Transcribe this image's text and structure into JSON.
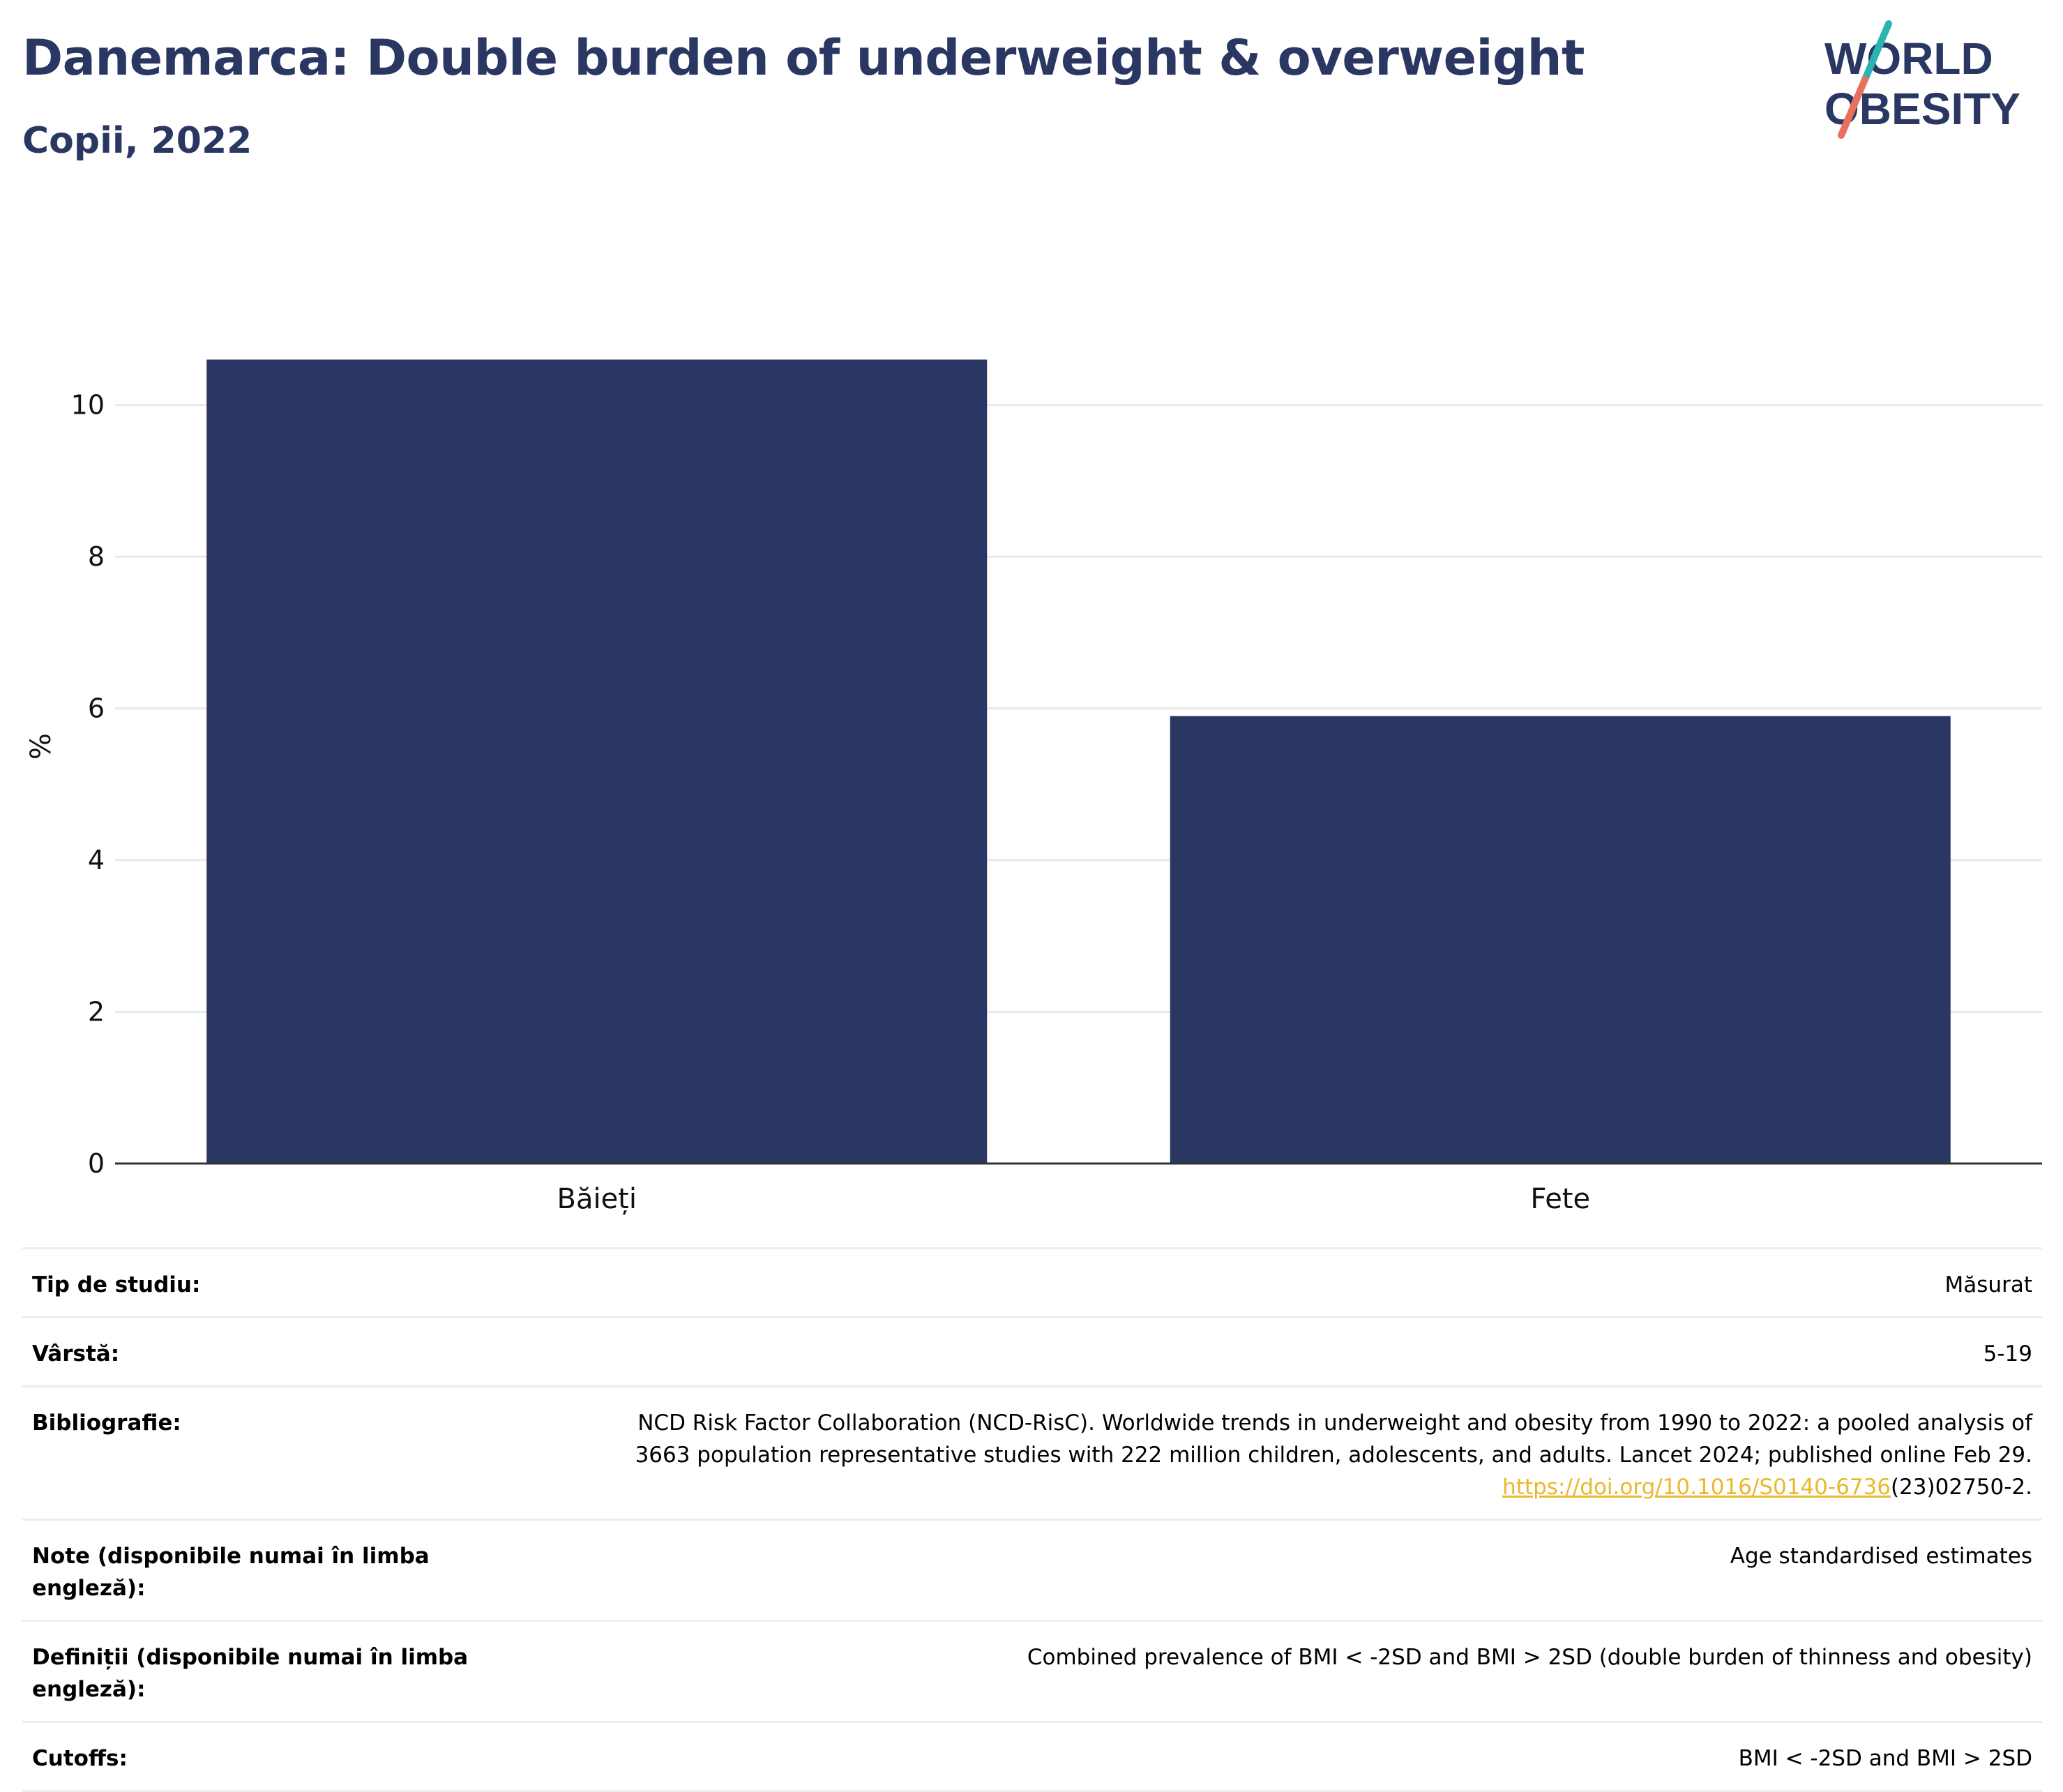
{
  "header": {
    "title": "Danemarca: Double burden of underweight & overweight",
    "subtitle": "Copii, 2022"
  },
  "logo": {
    "line1": "WORLD",
    "line2": "OBESITY",
    "colors": {
      "text": "#2b3763",
      "slash_top": "#2bb3b1",
      "slash_bottom": "#e8705e"
    }
  },
  "colors": {
    "bar": "#2b3763",
    "grid": "#e6e9ed",
    "axis": "#333333",
    "link": "#e8b92d"
  },
  "chart_data": {
    "type": "bar",
    "categories": [
      "Băieți",
      "Fete"
    ],
    "values": [
      10.6,
      5.9
    ],
    "ylabel": "%",
    "ylim": [
      0,
      11.0
    ],
    "yticks": [
      0,
      2,
      4,
      6,
      8,
      10
    ],
    "grid": true,
    "legend": "none"
  },
  "info": [
    {
      "label": "Tip de studiu:",
      "value": "Măsurat"
    },
    {
      "label": "Vârstă:",
      "value": "5-19"
    },
    {
      "label": "Bibliografie:",
      "value_line1": "NCD Risk Factor Collaboration (NCD-RisC). Worldwide trends in underweight and obesity from 1990 to 2022: a pooled analysis of",
      "value_line2": "3663 population representative studies with 222 million children, adolescents, and adults. Lancet 2024; published online Feb 29.",
      "link_text": "https://doi.org/10.1016/S0140-6736",
      "value_suffix": "(23)02750-2."
    },
    {
      "label": "Note (disponibile numai în limba engleză):",
      "value": "Age standardised estimates"
    },
    {
      "label": "Definiții (disponibile numai în limba engleză):",
      "value": "Combined prevalence of BMI < -2SD and BMI > 2SD (double burden of thinness and obesity)"
    },
    {
      "label": "Cutoffs:",
      "value": "BMI < -2SD and BMI > 2SD"
    }
  ]
}
